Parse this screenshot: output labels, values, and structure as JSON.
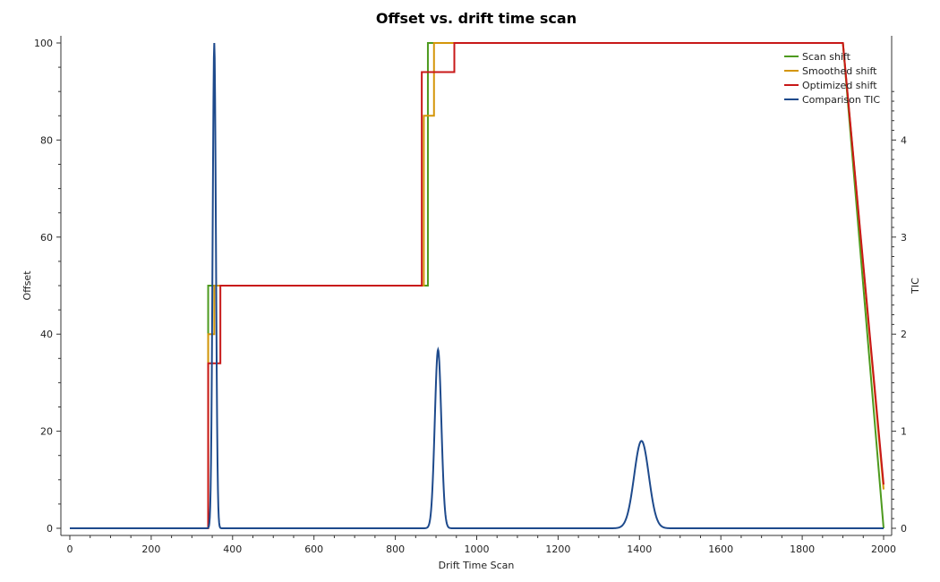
{
  "chart_data": {
    "type": "line",
    "title": "Offset vs. drift time scan",
    "xlabel": "Drift Time Scan",
    "ylabel": "Offset",
    "y2label": "TIC",
    "xlim": [
      0,
      2000
    ],
    "ylim": [
      0,
      100
    ],
    "y2lim": [
      0,
      5
    ],
    "xticks": [
      0,
      200,
      400,
      600,
      800,
      1000,
      1200,
      1400,
      1600,
      1800,
      2000
    ],
    "yticks": [
      0,
      20,
      40,
      60,
      80,
      100
    ],
    "y2ticks": [
      0,
      1,
      2,
      3,
      4
    ],
    "grid": false,
    "legend_position": "top-right",
    "series": [
      {
        "name": "Scan shift",
        "axis": "left",
        "color": "#4d9a1e",
        "x": [
          0,
          340,
          340,
          880,
          880,
          1900,
          2000
        ],
        "y": [
          0,
          0,
          50,
          50,
          100,
          100,
          0
        ]
      },
      {
        "name": "Smoothed shift",
        "axis": "left",
        "color": "#d4960a",
        "x": [
          0,
          340,
          340,
          355,
          355,
          870,
          870,
          895,
          895,
          1900,
          2000
        ],
        "y": [
          0,
          0,
          40,
          40,
          50,
          50,
          85,
          85,
          100,
          100,
          8
        ]
      },
      {
        "name": "Optimized shift",
        "axis": "left",
        "color": "#c81818",
        "x": [
          0,
          340,
          340,
          370,
          370,
          865,
          865,
          945,
          945,
          1900,
          2000
        ],
        "y": [
          0,
          0,
          34,
          34,
          50,
          50,
          94,
          94,
          100,
          100,
          9
        ]
      },
      {
        "name": "Comparison TIC",
        "axis": "right",
        "color": "#1e4a8c",
        "baseline": 0,
        "peaks": [
          {
            "center": 355,
            "height": 5.0,
            "sigma": 4
          },
          {
            "center": 905,
            "height": 1.84,
            "sigma": 8
          },
          {
            "center": 1405,
            "height": 0.9,
            "sigma": 18
          }
        ],
        "x_range": [
          0,
          2000
        ]
      }
    ]
  }
}
